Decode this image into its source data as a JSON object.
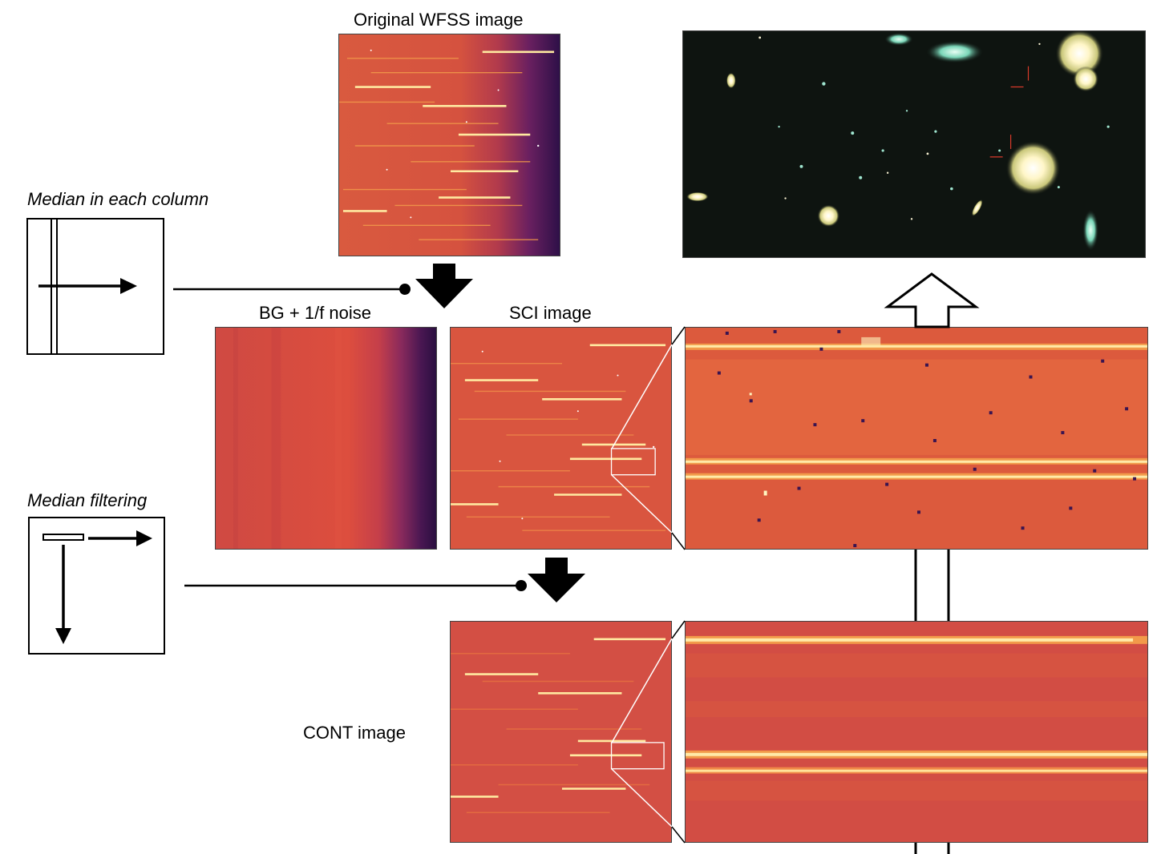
{
  "labels": {
    "original": "Original WFSS image",
    "bg_noise": "BG + 1/f noise",
    "sci": "SCI image",
    "cont": "CONT image",
    "median_column": "Median in each column",
    "median_filtering": "Median filtering"
  },
  "colors": {
    "spectrum_base": "#d9553f",
    "spectrum_dark": "#3a1450",
    "trace": "#ffe08a",
    "sky_bg": "#0e1410"
  }
}
